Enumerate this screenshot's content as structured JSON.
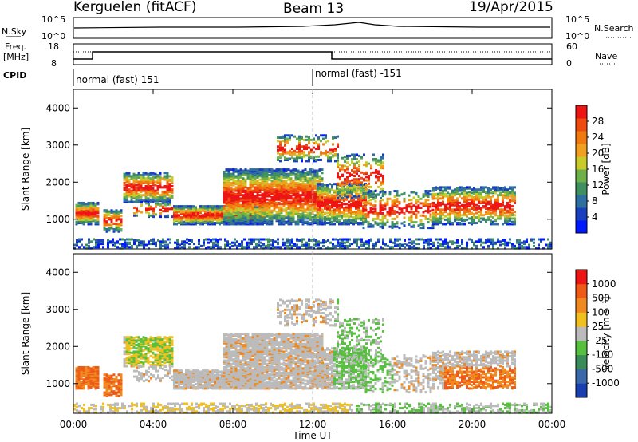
{
  "header": {
    "station": "Kerguelen (fitACF)",
    "beam": "Beam 13",
    "date": "19/Apr/2015"
  },
  "top_panels": {
    "nsky_label": "N.Sky",
    "nsky_ticks": [
      "10^5",
      "10^0"
    ],
    "nsearch_label": "N.Search",
    "nsearch_ticks": [
      "10^5",
      "10^0"
    ],
    "freq_label_1": "Freq.",
    "freq_label_2": "[MHz]",
    "freq_ticks": [
      "18",
      "8"
    ],
    "nave_label": "Nave",
    "nave_ticks": [
      "60",
      "0"
    ],
    "cpid_label": "CPID",
    "cpid_1": "normal (fast) 151",
    "cpid_2": "normal (fast) -151"
  },
  "chart_data": [
    {
      "type": "heatmap",
      "name": "power-panel",
      "ylabel": "Slant Range [km]",
      "yticks": [
        "1000",
        "2000",
        "3000",
        "4000"
      ],
      "ylim": [
        200,
        4500
      ],
      "colorbar": {
        "label": "Power [dB]",
        "ticks": [
          "4",
          "8",
          "12",
          "16",
          "20",
          "24",
          "28"
        ],
        "colors": [
          "#0019ff",
          "#1a40c0",
          "#2f6fa0",
          "#3f8f60",
          "#6db04c",
          "#c8cc2a",
          "#f0a020",
          "#f07a10",
          "#ef4a10",
          "#ee1515"
        ]
      }
    },
    {
      "type": "heatmap",
      "name": "velocity-panel",
      "xlabel": "Time UT",
      "ylabel": "Slant Range [km]",
      "xticks": [
        "00:00",
        "04:00",
        "08:00",
        "12:00",
        "16:00",
        "20:00",
        "00:00"
      ],
      "yticks": [
        "1000",
        "2000",
        "3000",
        "4000"
      ],
      "ylim": [
        200,
        4500
      ],
      "colorbar": {
        "label": "Velocity [m s⁻¹]",
        "ticks": [
          "1000",
          "500",
          "100",
          "25",
          "-25",
          "-100",
          "-500",
          "-1000"
        ],
        "colors": [
          "#1a3fb0",
          "#3a68a8",
          "#3a8a5a",
          "#58c040",
          "#bbbbbb",
          "#f0c020",
          "#f08a20",
          "#ee5a18",
          "#ee1515"
        ]
      }
    }
  ]
}
